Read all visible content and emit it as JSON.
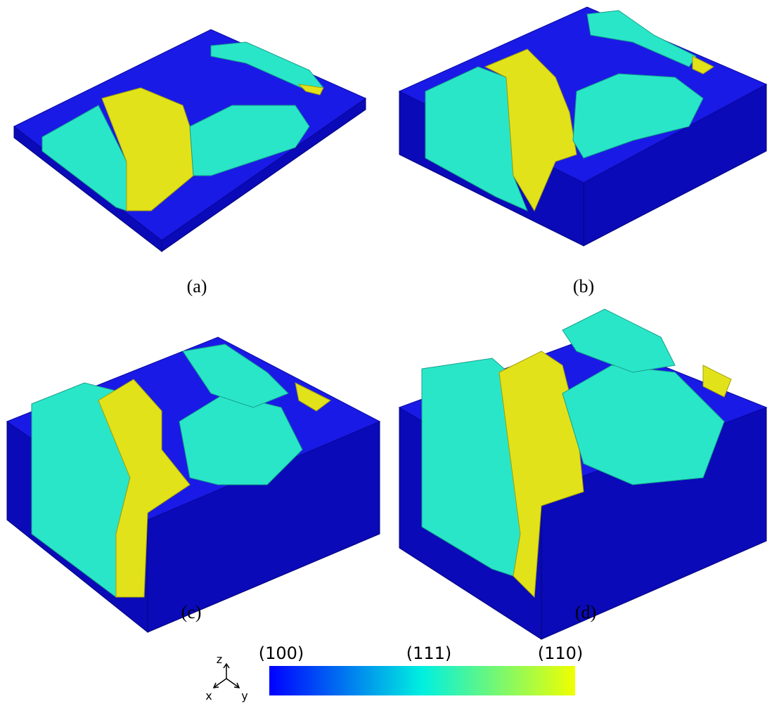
{
  "panels": [
    {
      "caption": "(a)"
    },
    {
      "caption": "(b)"
    },
    {
      "caption": "(c)"
    },
    {
      "caption": "(d)"
    }
  ],
  "colorbar": {
    "labels": [
      "(100)",
      "(111)",
      "(110)"
    ],
    "colors": [
      "#0000ff",
      "#00f0e0",
      "#f0ff00"
    ]
  },
  "axes": {
    "labels": [
      "z",
      "x",
      "y"
    ]
  }
}
